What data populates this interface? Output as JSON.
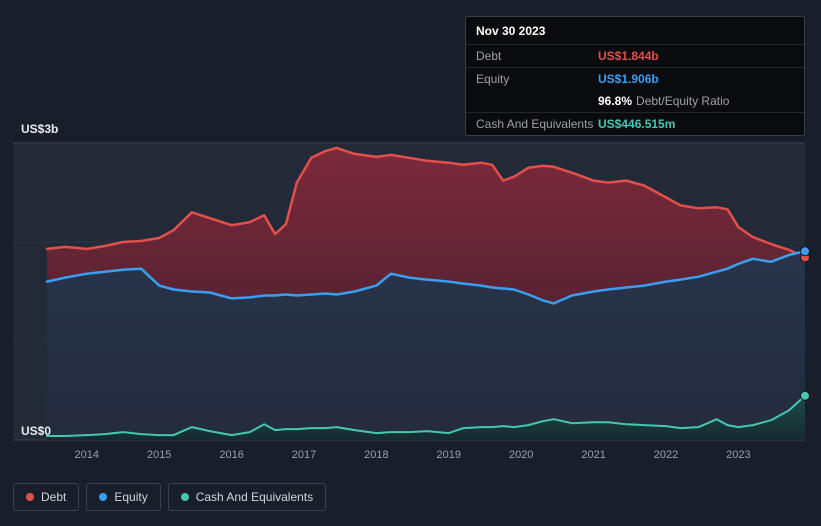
{
  "tooltip": {
    "date": "Nov 30 2023",
    "debt_label": "Debt",
    "debt_value": "US$1.844b",
    "equity_label": "Equity",
    "equity_value": "US$1.906b",
    "ratio_percent": "96.8%",
    "ratio_label": "Debt/Equity Ratio",
    "cash_label": "Cash And Equivalents",
    "cash_value": "US$446.515m"
  },
  "axis": {
    "y_top_label": "US$3b",
    "y_bottom_label": "US$0"
  },
  "legend": {
    "debt": "Debt",
    "equity": "Equity",
    "cash": "Cash And Equivalents"
  },
  "colors": {
    "debt": "#e2504c",
    "equity": "#3a9ff2",
    "cash": "#45c8b2",
    "background": "#191f2a",
    "plot_background": "#232a37"
  },
  "chart_data": {
    "type": "area",
    "title": "",
    "x_unit": "year",
    "y_unit": "US$ billions",
    "x_range": [
      2013.45,
      2023.92
    ],
    "ylim": [
      0,
      3
    ],
    "y_tick_labels": [
      "US$0",
      "US$3b"
    ],
    "x_tick_labels": [
      "2014",
      "2015",
      "2016",
      "2017",
      "2018",
      "2019",
      "2020",
      "2021",
      "2022",
      "2023"
    ],
    "legend_position": "bottom-left",
    "grid": true,
    "x": [
      2013.45,
      2013.7,
      2014.0,
      2014.25,
      2014.5,
      2014.75,
      2015.0,
      2015.2,
      2015.45,
      2015.7,
      2016.0,
      2016.25,
      2016.45,
      2016.6,
      2016.75,
      2016.9,
      2017.1,
      2017.3,
      2017.45,
      2017.7,
      2018.0,
      2018.2,
      2018.45,
      2018.7,
      2019.0,
      2019.2,
      2019.45,
      2019.6,
      2019.75,
      2019.9,
      2020.1,
      2020.3,
      2020.45,
      2020.7,
      2021.0,
      2021.2,
      2021.45,
      2021.7,
      2022.0,
      2022.2,
      2022.45,
      2022.7,
      2022.85,
      2023.0,
      2023.2,
      2023.45,
      2023.7,
      2023.92
    ],
    "series": [
      {
        "name": "Debt",
        "key": "debt",
        "color": "#e2504c",
        "final_label": "US$1.844b",
        "values": [
          1.93,
          1.95,
          1.93,
          1.96,
          2.0,
          2.01,
          2.04,
          2.12,
          2.3,
          2.24,
          2.17,
          2.2,
          2.27,
          2.08,
          2.18,
          2.6,
          2.85,
          2.92,
          2.95,
          2.89,
          2.86,
          2.88,
          2.85,
          2.82,
          2.8,
          2.78,
          2.8,
          2.78,
          2.62,
          2.66,
          2.75,
          2.77,
          2.76,
          2.7,
          2.62,
          2.6,
          2.62,
          2.57,
          2.45,
          2.37,
          2.34,
          2.35,
          2.33,
          2.15,
          2.05,
          1.98,
          1.92,
          1.844
        ]
      },
      {
        "name": "Equity",
        "key": "equity",
        "color": "#3a9ff2",
        "final_label": "US$1.906b",
        "values": [
          1.6,
          1.64,
          1.68,
          1.7,
          1.72,
          1.73,
          1.56,
          1.52,
          1.5,
          1.49,
          1.43,
          1.44,
          1.46,
          1.46,
          1.47,
          1.46,
          1.47,
          1.48,
          1.47,
          1.5,
          1.56,
          1.68,
          1.64,
          1.62,
          1.6,
          1.58,
          1.56,
          1.54,
          1.53,
          1.52,
          1.47,
          1.41,
          1.38,
          1.46,
          1.5,
          1.52,
          1.54,
          1.56,
          1.6,
          1.62,
          1.65,
          1.7,
          1.73,
          1.78,
          1.83,
          1.8,
          1.87,
          1.906
        ]
      },
      {
        "name": "Cash And Equivalents",
        "key": "cash",
        "color": "#45c8b2",
        "final_label": "US$446.515m",
        "values": [
          0.04,
          0.04,
          0.05,
          0.06,
          0.08,
          0.06,
          0.05,
          0.05,
          0.13,
          0.09,
          0.05,
          0.08,
          0.16,
          0.1,
          0.11,
          0.11,
          0.12,
          0.12,
          0.13,
          0.1,
          0.07,
          0.08,
          0.08,
          0.09,
          0.07,
          0.12,
          0.13,
          0.13,
          0.14,
          0.13,
          0.15,
          0.19,
          0.21,
          0.17,
          0.18,
          0.18,
          0.16,
          0.15,
          0.14,
          0.12,
          0.13,
          0.21,
          0.15,
          0.13,
          0.15,
          0.2,
          0.3,
          0.4465
        ]
      }
    ]
  }
}
